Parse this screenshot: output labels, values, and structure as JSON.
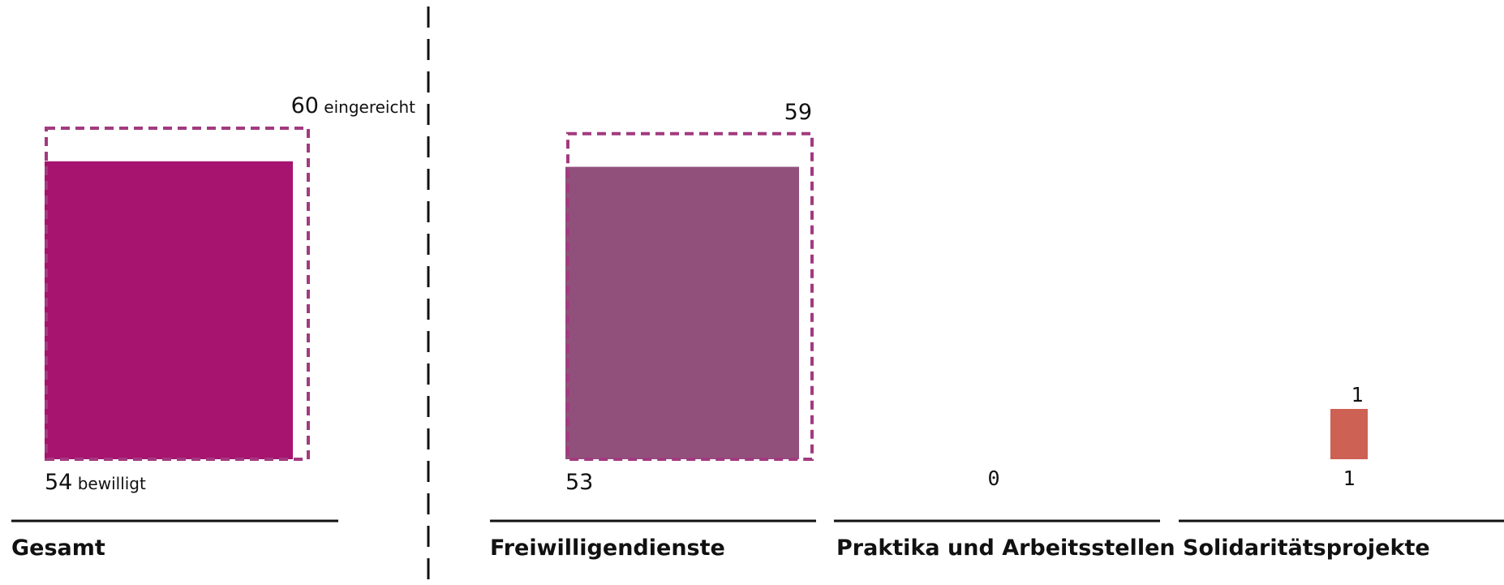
{
  "chart_data": {
    "type": "bar",
    "title": "",
    "xlabel": "",
    "ylabel": "",
    "grid": false,
    "legend": "none",
    "label_suffix_submitted": "eingereicht",
    "label_suffix_approved": "bewilligt",
    "groups": [
      {
        "category": "Gesamt",
        "submitted": 60,
        "approved": 54,
        "submitted_label": "60",
        "approved_label": "54",
        "color": "#A6146F"
      },
      {
        "category": "Freiwilligendienste",
        "submitted": 59,
        "approved": 53,
        "submitted_label": "59",
        "approved_label": "53",
        "color": "#91507C"
      },
      {
        "category": "Praktika und Arbeitsstellen",
        "submitted": 0,
        "approved": 0,
        "submitted_label": "",
        "approved_label": "0",
        "color": "#91507C"
      },
      {
        "category": "Solidaritätsprojekte",
        "submitted": 1,
        "approved": 1,
        "submitted_label": "1",
        "approved_label": "1",
        "color": "#CC6154"
      }
    ],
    "outline_color": "#A23A7F",
    "ylim": [
      0,
      60
    ]
  }
}
